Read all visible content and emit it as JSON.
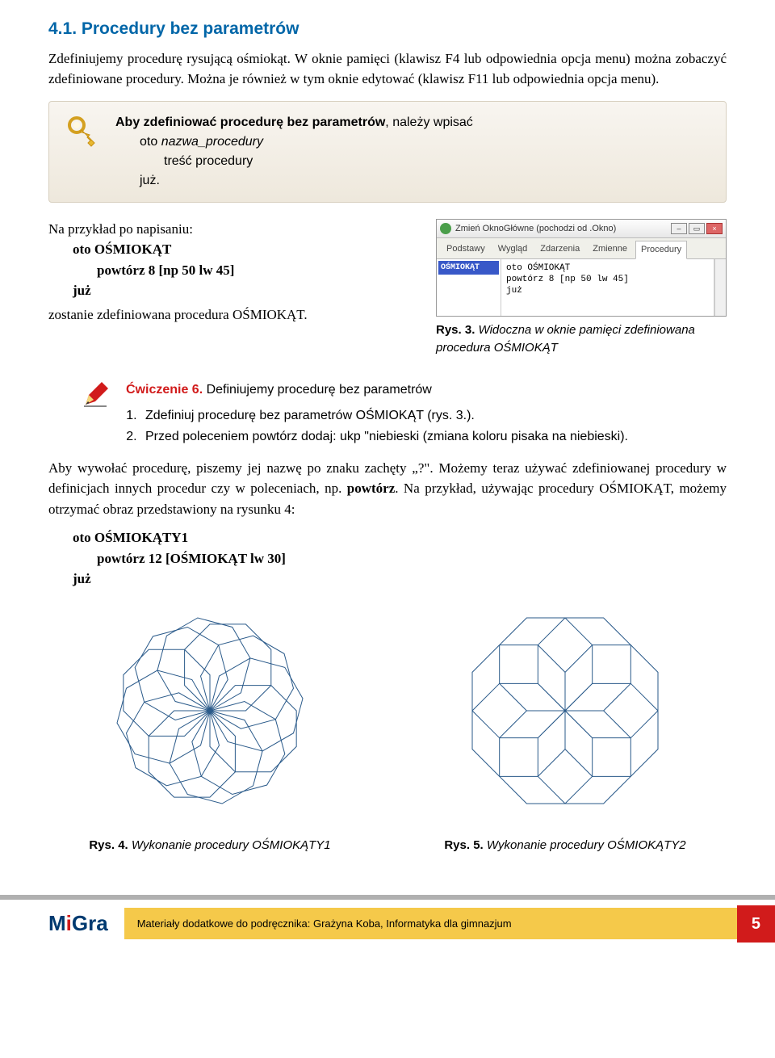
{
  "section": {
    "number": "4.1.",
    "title": "Procedury bez parametrów"
  },
  "para1": "Zdefiniujemy procedurę rysującą ośmiokąt. W oknie pamięci (klawisz F4 lub odpowiednia opcja menu) można zobaczyć zdefiniowane procedury. Można je również w tym oknie edytować (klawisz F11 lub odpowiednia opcja menu).",
  "keybox": {
    "line1_a": "Aby zdefiniować procedurę bez parametrów",
    "line1_b": ", należy wpisać",
    "line2_a": "oto ",
    "line2_b": "nazwa_procedury",
    "line3": "treść procedury",
    "line4": "już."
  },
  "example": {
    "intro": "Na przykład po napisaniu:",
    "code": {
      "l1": "oto OŚMIOKĄT",
      "l2": "powtórz 8 [np 50 lw 45]",
      "l3": "już"
    },
    "outro": "zostanie zdefiniowana procedura OŚMIOKĄT."
  },
  "screenshot": {
    "title": "Zmień OknoGłówne (pochodzi od .Okno)",
    "tabs": [
      "Podstawy",
      "Wygląd",
      "Zdarzenia",
      "Zmienne",
      "Procedury"
    ],
    "active_tab_index": 4,
    "sidebar_item": "OŚMIOKĄT",
    "code": {
      "l1": "oto OŚMIOKĄT",
      "l2": "powtórz 8 [np 50 lw 45]",
      "l3": "już"
    }
  },
  "caption3": {
    "label": "Rys. 3.",
    "text": " Widoczna w oknie pamięci zdefiniowana procedura OŚMIOKĄT"
  },
  "exercise": {
    "number": "Ćwiczenie 6.",
    "title": " Definiujemy procedurę bez parametrów",
    "items": [
      "Zdefiniuj procedurę bez parametrów OŚMIOKĄT (rys. 3.).",
      "Przed poleceniem powtórz dodaj: ukp \"niebieski (zmiana koloru pisaka na niebieski)."
    ]
  },
  "para2_a": "Aby wywołać procedurę, piszemy jej nazwę po znaku zachęty „?\". Możemy teraz używać zdefiniowanej procedury w definicjach innych procedur czy w poleceniach, np. ",
  "para2_bold": "powtórz",
  "para2_b": ". Na przykład, używając procedury OŚMIOKĄT, możemy otrzymać obraz przedstawiony na rysunku 4:",
  "code2": {
    "l1": "oto OŚMIOKĄTY1",
    "l2": "powtórz 12 [OŚMIOKĄT lw 30]",
    "l3": "już"
  },
  "figure4": {
    "label": "Rys. 4.",
    "text": " Wykonanie procedury OŚMIOKĄTY1",
    "rotations": 12,
    "stroke": "#2a5a8a",
    "radius": 50
  },
  "figure5": {
    "label": "Rys. 5.",
    "text": " Wykonanie procedury OŚMIOKĄTY2",
    "rotations": 8,
    "stroke": "#2a5a8a",
    "radius": 50
  },
  "footer": {
    "logo": {
      "m": "M",
      "i": "i",
      "g": "Gra"
    },
    "text": "Materiały dodatkowe do podręcznika: Grażyna Koba, Informatyka dla gimnazjum",
    "page": "5"
  },
  "colors": {
    "heading": "#0066a8",
    "accent_red": "#d11b1b",
    "footer_yellow": "#f5c94a",
    "stroke": "#2a5a8a"
  }
}
